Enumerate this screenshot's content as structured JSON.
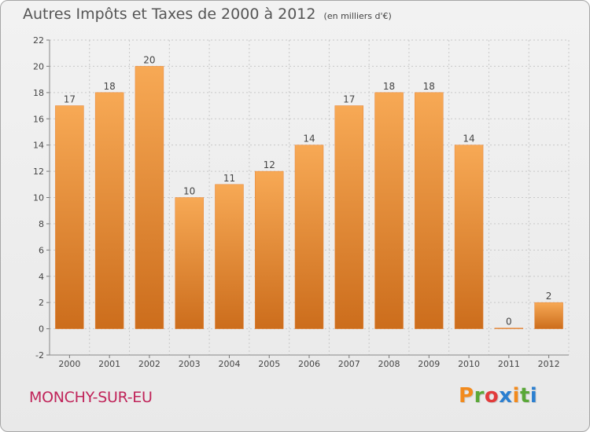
{
  "chart_data": {
    "type": "bar",
    "title": "Autres Impôts et Taxes de 2000 à 2012",
    "unit_label": "(en milliers d'€)",
    "categories": [
      "2000",
      "2001",
      "2002",
      "2003",
      "2004",
      "2005",
      "2006",
      "2007",
      "2008",
      "2009",
      "2010",
      "2011",
      "2012"
    ],
    "values": [
      17,
      18,
      20,
      10,
      11,
      12,
      14,
      17,
      18,
      18,
      14,
      0,
      2
    ],
    "ylim": [
      -2,
      22
    ],
    "yticks": [
      -2,
      0,
      2,
      4,
      6,
      8,
      10,
      12,
      14,
      16,
      18,
      20,
      22
    ],
    "grid": true,
    "bar_color_top": "#f7a955",
    "bar_color_bottom": "#cc6d1c"
  },
  "footer": {
    "commune": "MONCHY-SUR-EU",
    "logo_text": "Proxiti",
    "logo_colors": [
      "#f28a1c",
      "#5aa838",
      "#e23b3b",
      "#2b7fd0",
      "#f28a1c",
      "#5aa838",
      "#2b7fd0"
    ]
  }
}
